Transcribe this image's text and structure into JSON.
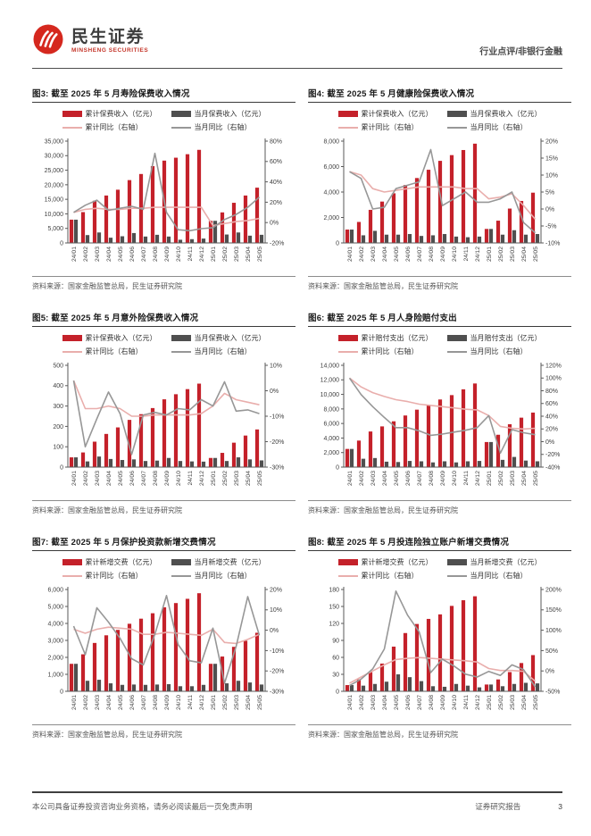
{
  "header": {
    "brand_cn": "民生证券",
    "brand_en": "MINSHENG SECURITIES",
    "doc_type": "行业点评/非银行金融"
  },
  "footer": {
    "left": "本公司具备证券投资咨询业务资格，请务必阅读最后一页免责声明",
    "right": "证券研究报告",
    "page": "3"
  },
  "colors": {
    "bar_cum": "#c4212a",
    "bar_mon": "#4f4f4f",
    "line_cum": "#e9aeac",
    "line_mon": "#979797",
    "axis": "#5a5a5a",
    "tick_text": "#404040"
  },
  "categories": [
    "24/01",
    "24/02",
    "24/03",
    "24/04",
    "24/05",
    "24/06",
    "24/07",
    "24/08",
    "24/09",
    "24/10",
    "24/11",
    "24/12",
    "25/01",
    "25/02",
    "25/03",
    "25/04",
    "25/05"
  ],
  "figures": [
    {
      "title": "图3: 截至 2025 年 5 月寿险保费收入情况",
      "source": "资料来源：国家金融监管总局，民生证券研究院",
      "legend": [
        "累计保费收入（亿元）",
        "当月保费收入（亿元）",
        "累计同比（右轴）",
        "当月同比（右轴）"
      ],
      "chart_data": {
        "type": "combo-bar-line",
        "categories": [
          "24/01",
          "24/02",
          "24/03",
          "24/04",
          "24/05",
          "24/06",
          "24/07",
          "24/08",
          "24/09",
          "24/10",
          "24/11",
          "24/12",
          "25/01",
          "25/02",
          "25/03",
          "25/04",
          "25/05"
        ],
        "left_axis": {
          "min": 0,
          "max": 35000,
          "ticks": [
            0,
            5000,
            10000,
            15000,
            20000,
            25000,
            30000,
            35000
          ]
        },
        "right_axis": {
          "min": -20,
          "max": 80,
          "ticks": [
            -20,
            0,
            20,
            40,
            60,
            80
          ],
          "suffix": "%"
        },
        "series": [
          {
            "name": "累计保费收入（亿元）",
            "kind": "bar",
            "axis": "left",
            "color_key": "bar_cum",
            "values": [
              8000,
              10600,
              14500,
              16300,
              18300,
              21600,
              23700,
              26400,
              28300,
              29300,
              30500,
              32000,
              7600,
              10500,
              13800,
              16300,
              19000
            ]
          },
          {
            "name": "当月保费收入（亿元）",
            "kind": "bar",
            "axis": "left",
            "color_key": "bar_mon",
            "values": [
              8000,
              2700,
              3600,
              1800,
              2300,
              3400,
              2200,
              2800,
              2200,
              1100,
              1300,
              1500,
              7600,
              2900,
              3600,
              2500,
              2800
            ]
          },
          {
            "name": "累计同比（右轴）",
            "kind": "line",
            "axis": "right",
            "color_key": "line_cum",
            "values": [
              10,
              13,
              14,
              13,
              13,
              14,
              14,
              15,
              15,
              15,
              15,
              15,
              -3,
              -1,
              1,
              2,
              4
            ]
          },
          {
            "name": "当月同比（右轴）",
            "kind": "line",
            "axis": "right",
            "color_key": "line_mon",
            "values": [
              10,
              17,
              22,
              12,
              14,
              16,
              13,
              68,
              10,
              -7,
              -8,
              -6,
              -5,
              3,
              8,
              15,
              25
            ]
          }
        ]
      }
    },
    {
      "title": "图4: 截至 2025 年 5 月健康险保费收入情况",
      "source": "资料来源：国家金融监管总局，民生证券研究院",
      "legend": [
        "累计保费收入（亿元）",
        "当月保费收入（亿元）",
        "累计同比（右轴）",
        "当月同比（右轴）"
      ],
      "chart_data": {
        "type": "combo-bar-line",
        "categories": [
          "24/01",
          "24/02",
          "24/03",
          "24/04",
          "24/05",
          "24/06",
          "24/07",
          "24/08",
          "24/09",
          "24/10",
          "24/11",
          "24/12",
          "25/01",
          "25/02",
          "25/03",
          "25/04",
          "25/05"
        ],
        "left_axis": {
          "min": 0,
          "max": 8000,
          "ticks": [
            0,
            2000,
            4000,
            6000,
            8000
          ]
        },
        "right_axis": {
          "min": -10,
          "max": 20,
          "ticks": [
            -10,
            -5,
            0,
            5,
            10,
            15,
            20
          ],
          "suffix": "%"
        },
        "series": [
          {
            "name": "累计保费收入（亿元）",
            "kind": "bar",
            "axis": "left",
            "color_key": "bar_cum",
            "values": [
              1050,
              1650,
              2600,
              3250,
              3900,
              4550,
              5100,
              5750,
              6450,
              6900,
              7300,
              7800,
              1100,
              1750,
              2700,
              3300,
              3950
            ]
          },
          {
            "name": "当月保费收入（亿元）",
            "kind": "bar",
            "axis": "left",
            "color_key": "bar_mon",
            "values": [
              1050,
              600,
              950,
              650,
              650,
              700,
              550,
              600,
              700,
              500,
              450,
              500,
              1100,
              650,
              1000,
              650,
              700
            ]
          },
          {
            "name": "累计同比（右轴）",
            "kind": "line",
            "axis": "right",
            "color_key": "line_cum",
            "values": [
              11,
              10,
              6,
              5,
              5.5,
              6,
              6.5,
              6.5,
              6.5,
              6.5,
              6,
              6,
              3,
              3.5,
              4.5,
              1,
              -3
            ]
          },
          {
            "name": "当月同比（右轴）",
            "kind": "line",
            "axis": "right",
            "color_key": "line_mon",
            "values": [
              11,
              9,
              0,
              0.5,
              6,
              7,
              8,
              17.5,
              1,
              3,
              5,
              2,
              2,
              3,
              5,
              -4,
              -7
            ]
          }
        ]
      }
    },
    {
      "title": "图5: 截至 2025 年 5 月意外险保费收入情况",
      "source": "资料来源：国家金融监管总局，民生证券研究院",
      "legend": [
        "累计保费收入（亿元）",
        "当月保费收入（亿元）",
        "累计同比（右轴）",
        "当月同比（右轴）"
      ],
      "chart_data": {
        "type": "combo-bar-line",
        "categories": [
          "24/01",
          "24/02",
          "24/03",
          "24/04",
          "24/05",
          "24/06",
          "24/07",
          "24/08",
          "24/09",
          "24/10",
          "24/11",
          "24/12",
          "25/01",
          "25/02",
          "25/03",
          "25/04",
          "25/05"
        ],
        "left_axis": {
          "min": 0,
          "max": 500,
          "ticks": [
            0,
            100,
            200,
            300,
            400,
            500
          ]
        },
        "right_axis": {
          "min": -30,
          "max": 10,
          "ticks": [
            -30,
            -20,
            -10,
            0,
            10
          ],
          "suffix": "%"
        },
        "series": [
          {
            "name": "累计保费收入（亿元）",
            "kind": "bar",
            "axis": "left",
            "color_key": "bar_cum",
            "values": [
              48,
              72,
              125,
              163,
              195,
              232,
              260,
              290,
              333,
              358,
              383,
              410,
              45,
              70,
              120,
              155,
              185
            ]
          },
          {
            "name": "当月保费收入（亿元）",
            "kind": "bar",
            "axis": "left",
            "color_key": "bar_mon",
            "values": [
              48,
              28,
              52,
              40,
              35,
              38,
              30,
              32,
              45,
              30,
              28,
              27,
              45,
              30,
              48,
              38,
              33
            ]
          },
          {
            "name": "累计同比（右轴）",
            "kind": "line",
            "axis": "right",
            "color_key": "line_cum",
            "values": [
              4,
              -7,
              -7,
              -6,
              -7,
              -10,
              -10,
              -9.5,
              -9.5,
              -9.5,
              -9.5,
              -9,
              -6,
              -1,
              -3.5,
              -4.5,
              -5.5
            ]
          },
          {
            "name": "当月同比（右轴）",
            "kind": "line",
            "axis": "right",
            "color_key": "line_mon",
            "values": [
              4,
              -22,
              -11,
              -0.5,
              -9,
              -25,
              -9.5,
              -8.5,
              -9.5,
              -7,
              -7.5,
              -3.5,
              -6,
              3.5,
              -8,
              -7.5,
              -9
            ]
          }
        ]
      }
    },
    {
      "title": "图6: 截至 2025 年 5 月人身险赔付支出",
      "source": "资料来源：国家金融监管总局，民生证券研究院",
      "legend": [
        "累计赔付支出（亿元）",
        "当月赔付支出（亿元）",
        "累计同比（右轴）",
        "当月同比（右轴）"
      ],
      "chart_data": {
        "type": "combo-bar-line",
        "categories": [
          "24/01",
          "24/02",
          "24/03",
          "24/04",
          "24/05",
          "24/06",
          "24/07",
          "24/08",
          "24/09",
          "24/10",
          "24/11",
          "24/12",
          "25/01",
          "25/02",
          "25/03",
          "25/04",
          "25/05"
        ],
        "left_axis": {
          "min": 0,
          "max": 14000,
          "ticks": [
            0,
            2000,
            4000,
            6000,
            8000,
            10000,
            12000,
            14000
          ]
        },
        "right_axis": {
          "min": -40,
          "max": 120,
          "ticks": [
            -40,
            -20,
            0,
            20,
            40,
            60,
            80,
            100,
            120
          ],
          "suffix": "%"
        },
        "series": [
          {
            "name": "累计赔付支出（亿元）",
            "kind": "bar",
            "axis": "left",
            "color_key": "bar_cum",
            "values": [
              2500,
              3650,
              4900,
              5600,
              6300,
              7100,
              7900,
              8500,
              9300,
              9900,
              10700,
              11500,
              3450,
              4450,
              5900,
              6800,
              7500
            ]
          },
          {
            "name": "当月赔付支出（亿元）",
            "kind": "bar",
            "axis": "left",
            "color_key": "bar_mon",
            "values": [
              2500,
              1150,
              1250,
              750,
              700,
              850,
              800,
              650,
              800,
              650,
              800,
              850,
              3450,
              1000,
              1400,
              900,
              800
            ]
          },
          {
            "name": "累计同比（右轴）",
            "kind": "line",
            "axis": "right",
            "color_key": "line_cum",
            "values": [
              100,
              86,
              77,
              71,
              66,
              63,
              59,
              57,
              55,
              53,
              51,
              50,
              41,
              24,
              21,
              20,
              21
            ]
          },
          {
            "name": "当月同比（右轴）",
            "kind": "line",
            "axis": "right",
            "color_key": "line_mon",
            "values": [
              100,
              74,
              55,
              38,
              22,
              22,
              17,
              10,
              12,
              15,
              18,
              22,
              41,
              -18,
              19,
              14,
              11
            ]
          }
        ]
      }
    },
    {
      "title": "图7: 截至 2025 年 5 月保护投资款新增交费情况",
      "source": "资料来源：国家金融监管总局，民生证券研究院",
      "legend": [
        "累计新增交费（亿元）",
        "当月新增交费（亿元）",
        "累计同比（右轴）",
        "当月同比（右轴）"
      ],
      "chart_data": {
        "type": "combo-bar-line",
        "categories": [
          "24/01",
          "24/02",
          "24/03",
          "24/04",
          "24/05",
          "24/06",
          "24/07",
          "24/08",
          "24/09",
          "24/10",
          "24/11",
          "24/12",
          "25/01",
          "25/02",
          "25/03",
          "25/04",
          "25/05"
        ],
        "left_axis": {
          "min": 0,
          "max": 6000,
          "ticks": [
            0,
            1000,
            2000,
            3000,
            4000,
            5000,
            6000
          ]
        },
        "right_axis": {
          "min": -30,
          "max": 20,
          "ticks": [
            -30,
            -20,
            -10,
            0,
            10,
            20
          ],
          "suffix": "%"
        },
        "series": [
          {
            "name": "累计新增交费（亿元）",
            "kind": "bar",
            "axis": "left",
            "color_key": "bar_cum",
            "values": [
              1620,
              2180,
              2850,
              3300,
              3620,
              3980,
              4280,
              4600,
              4950,
              5200,
              5450,
              5780,
              1620,
              2050,
              2620,
              2980,
              3450
            ]
          },
          {
            "name": "当月新增交费（亿元）",
            "kind": "bar",
            "axis": "left",
            "color_key": "bar_mon",
            "values": [
              1620,
              620,
              680,
              470,
              380,
              400,
              380,
              400,
              420,
              300,
              300,
              380,
              1620,
              470,
              620,
              520,
              400
            ]
          },
          {
            "name": "累计同比（右轴）",
            "kind": "line",
            "axis": "right",
            "color_key": "line_cum",
            "values": [
              0.5,
              -1.5,
              0.5,
              1.5,
              1,
              0.5,
              -2,
              -2,
              -1,
              -1.5,
              -2,
              -2.5,
              0.5,
              -6,
              -6.5,
              -4.5,
              -2
            ]
          },
          {
            "name": "当月同比（右轴）",
            "kind": "line",
            "axis": "right",
            "color_key": "line_mon",
            "values": [
              2,
              -12,
              11,
              4,
              -4,
              -14,
              -17,
              -2,
              17,
              -7,
              -15,
              -16,
              1,
              -26,
              -8,
              16.5,
              -2.5
            ]
          }
        ]
      }
    },
    {
      "title": "图8: 截至 2025 年 5 月投连险独立账户新增交费情况",
      "source": "资料来源：国家金融监管总局，民生证券研究院",
      "legend": [
        "累计新增交费（亿元）",
        "当月新增交费（亿元）",
        "累计同比（右轴）",
        "当月同比（右轴）"
      ],
      "chart_data": {
        "type": "combo-bar-line",
        "categories": [
          "24/01",
          "24/02",
          "24/03",
          "24/04",
          "24/05",
          "24/06",
          "24/07",
          "24/08",
          "24/09",
          "24/10",
          "24/11",
          "24/12",
          "25/01",
          "25/02",
          "25/03",
          "25/04",
          "25/05"
        ],
        "left_axis": {
          "min": 0,
          "max": 180,
          "ticks": [
            0,
            30,
            60,
            90,
            120,
            150,
            180
          ]
        },
        "right_axis": {
          "min": -50,
          "max": 200,
          "ticks": [
            -50,
            0,
            50,
            100,
            150,
            200
          ],
          "suffix": "%"
        },
        "series": [
          {
            "name": "累计新增交费（亿元）",
            "kind": "bar",
            "axis": "left",
            "color_key": "bar_cum",
            "values": [
              11,
              21,
              34,
              49,
              79,
              103,
              119,
              128,
              136,
              151,
              161,
              168,
              12,
              21,
              34,
              50,
              64
            ]
          },
          {
            "name": "当月新增交费（亿元）",
            "kind": "bar",
            "axis": "left",
            "color_key": "bar_mon",
            "values": [
              11,
              10,
              13,
              17,
              30,
              25,
              18,
              9,
              8,
              13,
              10,
              7,
              12,
              9,
              13,
              15,
              14
            ]
          },
          {
            "name": "累计同比（右轴）",
            "kind": "line",
            "axis": "right",
            "color_key": "line_cum",
            "values": [
              -30,
              -15,
              0,
              15,
              28,
              31,
              33,
              31,
              29,
              27,
              25,
              22,
              6,
              1,
              1,
              -1,
              -25
            ]
          },
          {
            "name": "当月同比（右轴）",
            "kind": "line",
            "axis": "right",
            "color_key": "line_mon",
            "values": [
              -36,
              -20,
              5,
              54,
              196,
              137,
              96,
              -4,
              29,
              12,
              -8,
              -15,
              -1,
              -11,
              15,
              3,
              -39
            ]
          }
        ]
      }
    }
  ]
}
